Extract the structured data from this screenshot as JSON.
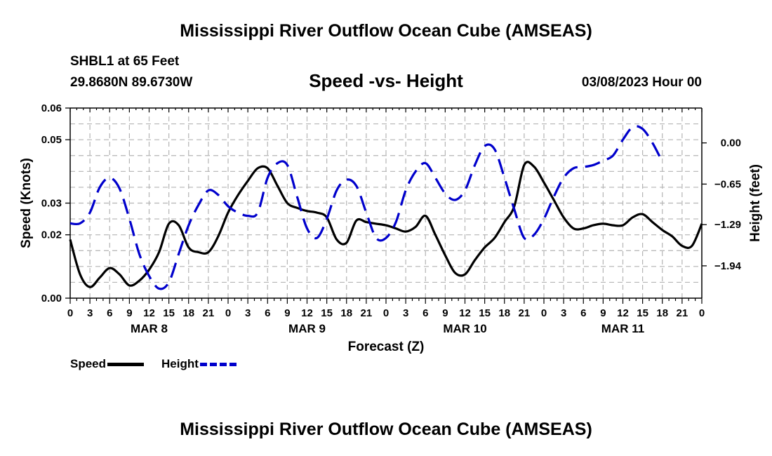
{
  "page_title": "Mississippi River Outflow Ocean Cube (AMSEAS)",
  "footer_title": "Mississippi River Outflow Ocean Cube (AMSEAS)",
  "station": "SHBL1 at 65 Feet",
  "location": "29.8680N  89.6730W",
  "datetime": "03/08/2023 Hour 00",
  "legend": {
    "speed_label": "Speed",
    "height_label": "Height"
  },
  "chart_data": {
    "type": "line",
    "title": "Speed -vs- Height",
    "xlabel": "Forecast (Z)",
    "ylabel": "Speed (Knots)",
    "y2label": "Height (feet)",
    "x_range_hours": [
      0,
      96
    ],
    "ylim": [
      0.0,
      0.06
    ],
    "y_ticks": [
      0.0,
      0.02,
      0.03,
      0.05,
      0.06
    ],
    "y_tick_labels": [
      "0.00",
      "0.02",
      "0.03",
      "0.05",
      "0.06"
    ],
    "y2lim": [
      -2.45,
      0.55
    ],
    "y2_ticks": [
      -1.94,
      -1.29,
      -0.65,
      0.0
    ],
    "y2_tick_labels": [
      "−1.94",
      "−1.29",
      "−0.65",
      "0.00"
    ],
    "x_tick_hours": [
      0,
      3,
      6,
      9,
      12,
      15,
      18,
      21,
      24,
      27,
      30,
      33,
      36,
      39,
      42,
      45,
      48,
      51,
      54,
      57,
      60,
      63,
      66,
      69,
      72,
      75,
      78,
      81,
      84,
      87,
      90,
      93,
      96
    ],
    "x_tick_labels": [
      "0",
      "3",
      "6",
      "9",
      "12",
      "15",
      "18",
      "21",
      "0",
      "3",
      "6",
      "9",
      "12",
      "15",
      "18",
      "21",
      "0",
      "3",
      "6",
      "9",
      "12",
      "15",
      "18",
      "21",
      "0",
      "3",
      "6",
      "9",
      "12",
      "15",
      "18",
      "21",
      "0"
    ],
    "day_labels": [
      {
        "label": "MAR 8",
        "hour": 12
      },
      {
        "label": "MAR 9",
        "hour": 36
      },
      {
        "label": "MAR 10",
        "hour": 60
      },
      {
        "label": "MAR 11",
        "hour": 84
      }
    ],
    "grid": true,
    "series": [
      {
        "name": "Speed",
        "axis": "left",
        "color": "#000000",
        "style": "solid",
        "points": [
          [
            0,
            0.0185
          ],
          [
            1.5,
            0.0075
          ],
          [
            3,
            0.0035
          ],
          [
            4.5,
            0.0065
          ],
          [
            6,
            0.0095
          ],
          [
            7.5,
            0.0075
          ],
          [
            9,
            0.004
          ],
          [
            10.5,
            0.0055
          ],
          [
            12,
            0.009
          ],
          [
            13.5,
            0.0145
          ],
          [
            15,
            0.0235
          ],
          [
            16.5,
            0.023
          ],
          [
            18,
            0.016
          ],
          [
            19.5,
            0.0145
          ],
          [
            21,
            0.0145
          ],
          [
            22.5,
            0.0195
          ],
          [
            24,
            0.027
          ],
          [
            25.5,
            0.0325
          ],
          [
            27,
            0.037
          ],
          [
            28.5,
            0.041
          ],
          [
            30,
            0.041
          ],
          [
            31.5,
            0.0355
          ],
          [
            33,
            0.03
          ],
          [
            34.5,
            0.0285
          ],
          [
            36,
            0.0275
          ],
          [
            37.5,
            0.027
          ],
          [
            39,
            0.0255
          ],
          [
            40.5,
            0.0185
          ],
          [
            42,
            0.0175
          ],
          [
            43.5,
            0.0245
          ],
          [
            45,
            0.024
          ],
          [
            46.5,
            0.0235
          ],
          [
            48,
            0.023
          ],
          [
            49.5,
            0.022
          ],
          [
            51,
            0.021
          ],
          [
            52.5,
            0.0225
          ],
          [
            54,
            0.026
          ],
          [
            55.5,
            0.02
          ],
          [
            57,
            0.0135
          ],
          [
            58.5,
            0.008
          ],
          [
            60,
            0.0075
          ],
          [
            61.5,
            0.012
          ],
          [
            63,
            0.016
          ],
          [
            64.5,
            0.019
          ],
          [
            66,
            0.024
          ],
          [
            67.5,
            0.029
          ],
          [
            69,
            0.042
          ],
          [
            70.5,
            0.0415
          ],
          [
            72,
            0.0365
          ],
          [
            73.5,
            0.031
          ],
          [
            75,
            0.0255
          ],
          [
            76.5,
            0.022
          ],
          [
            78,
            0.022
          ],
          [
            79.5,
            0.023
          ],
          [
            81,
            0.0235
          ],
          [
            82.5,
            0.023
          ],
          [
            84,
            0.023
          ],
          [
            85.5,
            0.0255
          ],
          [
            87,
            0.0265
          ],
          [
            88.5,
            0.024
          ],
          [
            90,
            0.0215
          ],
          [
            91.5,
            0.0195
          ],
          [
            93,
            0.0165
          ],
          [
            94.5,
            0.0165
          ],
          [
            96,
            0.0235
          ]
        ]
      },
      {
        "name": "Height",
        "axis": "right",
        "color": "#0000cc",
        "style": "dashed",
        "points": [
          [
            0,
            -1.27
          ],
          [
            1.5,
            -1.27
          ],
          [
            3,
            -1.1
          ],
          [
            4.5,
            -0.7
          ],
          [
            6,
            -0.55
          ],
          [
            7.5,
            -0.72
          ],
          [
            9,
            -1.2
          ],
          [
            10.5,
            -1.75
          ],
          [
            12,
            -2.1
          ],
          [
            13.5,
            -2.3
          ],
          [
            15,
            -2.2
          ],
          [
            16.5,
            -1.75
          ],
          [
            18,
            -1.3
          ],
          [
            19.5,
            -0.98
          ],
          [
            21,
            -0.75
          ],
          [
            22.5,
            -0.82
          ],
          [
            24,
            -1.0
          ],
          [
            25.5,
            -1.1
          ],
          [
            27,
            -1.15
          ],
          [
            28.5,
            -1.1
          ],
          [
            30,
            -0.55
          ],
          [
            31.5,
            -0.32
          ],
          [
            33,
            -0.35
          ],
          [
            34.5,
            -0.85
          ],
          [
            36,
            -1.35
          ],
          [
            37.5,
            -1.5
          ],
          [
            39,
            -1.2
          ],
          [
            40.5,
            -0.75
          ],
          [
            42,
            -0.58
          ],
          [
            43.5,
            -0.68
          ],
          [
            45,
            -1.1
          ],
          [
            46.5,
            -1.5
          ],
          [
            48,
            -1.5
          ],
          [
            49.5,
            -1.25
          ],
          [
            51,
            -0.75
          ],
          [
            52.5,
            -0.45
          ],
          [
            54,
            -0.32
          ],
          [
            55.5,
            -0.55
          ],
          [
            57,
            -0.8
          ],
          [
            58.5,
            -0.9
          ],
          [
            60,
            -0.75
          ],
          [
            61.5,
            -0.35
          ],
          [
            63,
            -0.05
          ],
          [
            64.5,
            -0.1
          ],
          [
            66,
            -0.55
          ],
          [
            67.5,
            -1.05
          ],
          [
            69,
            -1.5
          ],
          [
            70.5,
            -1.45
          ],
          [
            72,
            -1.2
          ],
          [
            73.5,
            -0.85
          ],
          [
            75,
            -0.55
          ],
          [
            76.5,
            -0.4
          ],
          [
            78,
            -0.38
          ],
          [
            79.5,
            -0.35
          ],
          [
            81,
            -0.28
          ],
          [
            82.5,
            -0.2
          ],
          [
            84,
            0.05
          ],
          [
            85.5,
            0.25
          ],
          [
            87,
            0.22
          ],
          [
            88.5,
            0.0
          ],
          [
            90,
            -0.3
          ]
        ]
      }
    ]
  }
}
